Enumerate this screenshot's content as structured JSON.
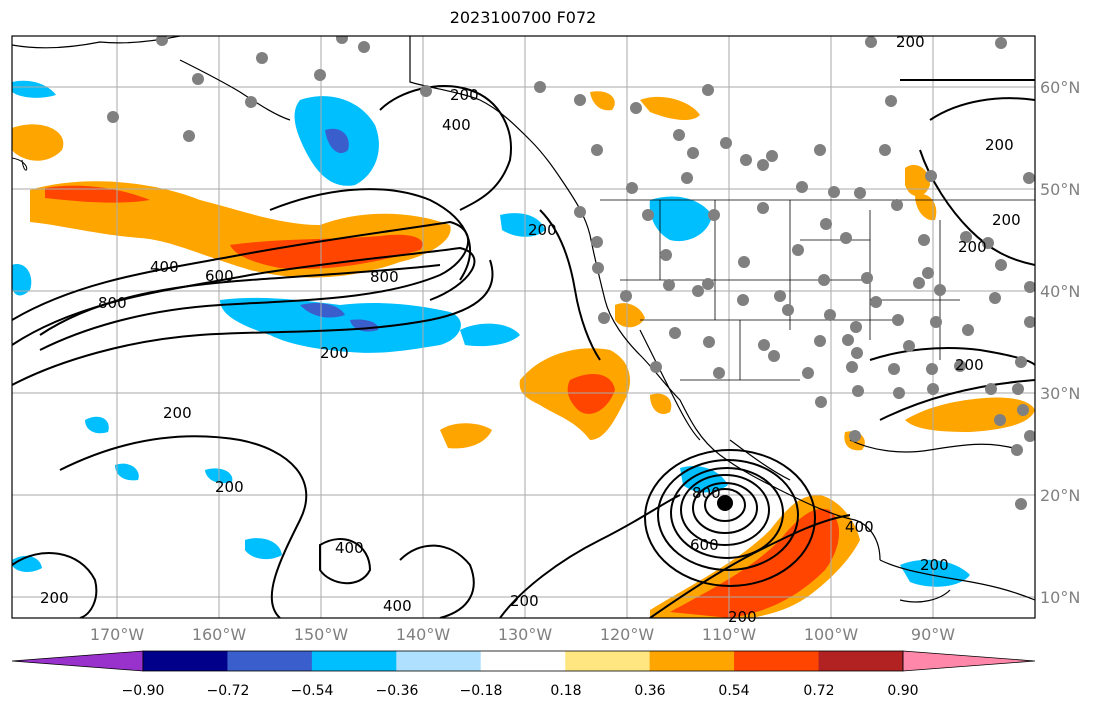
{
  "title": "2023100700 F072",
  "lat_labels": [
    "60°N",
    "50°N",
    "40°N",
    "30°N",
    "20°N",
    "10°N"
  ],
  "lon_labels": [
    "170°W",
    "160°W",
    "150°W",
    "140°W",
    "130°W",
    "120°W",
    "110°W",
    "100°W",
    "90°W"
  ],
  "colorbar": {
    "levels": [
      "−0.90",
      "−0.72",
      "−0.54",
      "−0.36",
      "−0.18",
      "0.18",
      "0.36",
      "0.54",
      "0.72",
      "0.90"
    ],
    "colors": [
      "#9932CC",
      "#00008B",
      "#3A5FCD",
      "#00BFFF",
      "#B0E0FF",
      "#FFFFFF",
      "#FFE680",
      "#FFA500",
      "#FF4500",
      "#B22222",
      "#FF88AA"
    ]
  },
  "contour_labels": [
    "200",
    "400",
    "600",
    "800"
  ],
  "colors": {
    "positive_moderate": "#FFA500",
    "positive_strong": "#FF4500",
    "positive_weak": "#FFE680",
    "negative_moderate": "#00BFFF",
    "negative_strong": "#3A5FCD",
    "station_dot": "#808080"
  }
}
